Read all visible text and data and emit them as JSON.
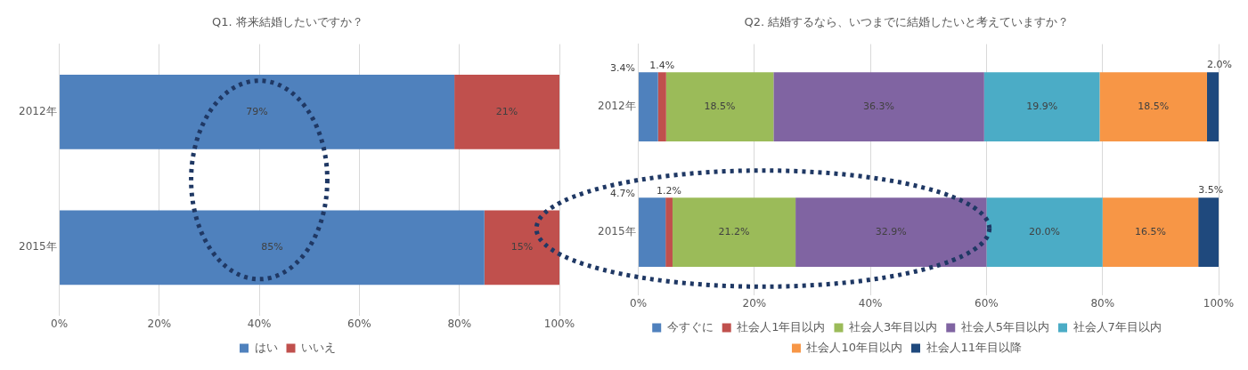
{
  "chart_data": [
    {
      "type": "bar",
      "title": "Q1. 将来結婚したいですか？",
      "orientation": "horizontal",
      "stacked": true,
      "categories": [
        "2012年",
        "2015年"
      ],
      "series": [
        {
          "name": "はい",
          "color": "#4f81bd",
          "values": [
            79,
            85
          ],
          "value_labels": [
            "79%",
            "85%"
          ]
        },
        {
          "name": "いいえ",
          "color": "#c0504d",
          "values": [
            21,
            15
          ],
          "value_labels": [
            "21%",
            "15%"
          ]
        }
      ],
      "xlim": [
        0,
        100
      ],
      "xticks": [
        {
          "value": 0,
          "label": "0%"
        },
        {
          "value": 20,
          "label": "20%"
        },
        {
          "value": 40,
          "label": "40%"
        },
        {
          "value": 60,
          "label": "60%"
        },
        {
          "value": 80,
          "label": "80%"
        },
        {
          "value": 100,
          "label": "100%"
        }
      ],
      "grid": "x",
      "legend": "bottom"
    },
    {
      "type": "bar",
      "title": "Q2. 結婚するなら、いつまでに結婚したいと考えていますか？",
      "orientation": "horizontal",
      "stacked": true,
      "categories": [
        "2012年",
        "2015年"
      ],
      "series": [
        {
          "name": "今すぐに",
          "color": "#4f81bd",
          "values": [
            3.4,
            4.7
          ],
          "value_labels": [
            "3.4%",
            "4.7%"
          ]
        },
        {
          "name": "社会人1年目以内",
          "color": "#c0504d",
          "values": [
            1.4,
            1.2
          ],
          "value_labels": [
            "1.4%",
            "1.2%"
          ]
        },
        {
          "name": "社会人3年目以内",
          "color": "#9bbb59",
          "values": [
            18.5,
            21.2
          ],
          "value_labels": [
            "18.5%",
            "21.2%"
          ]
        },
        {
          "name": "社会人5年目以内",
          "color": "#8064a2",
          "values": [
            36.3,
            32.9
          ],
          "value_labels": [
            "36.3%",
            "32.9%"
          ]
        },
        {
          "name": "社会人7年目以内",
          "color": "#4bacc6",
          "values": [
            19.9,
            20.0
          ],
          "value_labels": [
            "19.9%",
            "20.0%"
          ]
        },
        {
          "name": "社会人10年目以内",
          "color": "#f79646",
          "values": [
            18.5,
            16.5
          ],
          "value_labels": [
            "18.5%",
            "16.5%"
          ]
        },
        {
          "name": "社会人11年目以降",
          "color": "#1f497d",
          "values": [
            2.0,
            3.5
          ],
          "value_labels": [
            "2.0%",
            "3.5%"
          ]
        }
      ],
      "xlim": [
        0,
        100
      ],
      "xticks": [
        {
          "value": 0,
          "label": "0%"
        },
        {
          "value": 20,
          "label": "20%"
        },
        {
          "value": 40,
          "label": "40%"
        },
        {
          "value": 60,
          "label": "60%"
        },
        {
          "value": 80,
          "label": "80%"
        },
        {
          "value": 100,
          "label": "100%"
        }
      ],
      "grid": "x",
      "legend": "bottom"
    }
  ]
}
